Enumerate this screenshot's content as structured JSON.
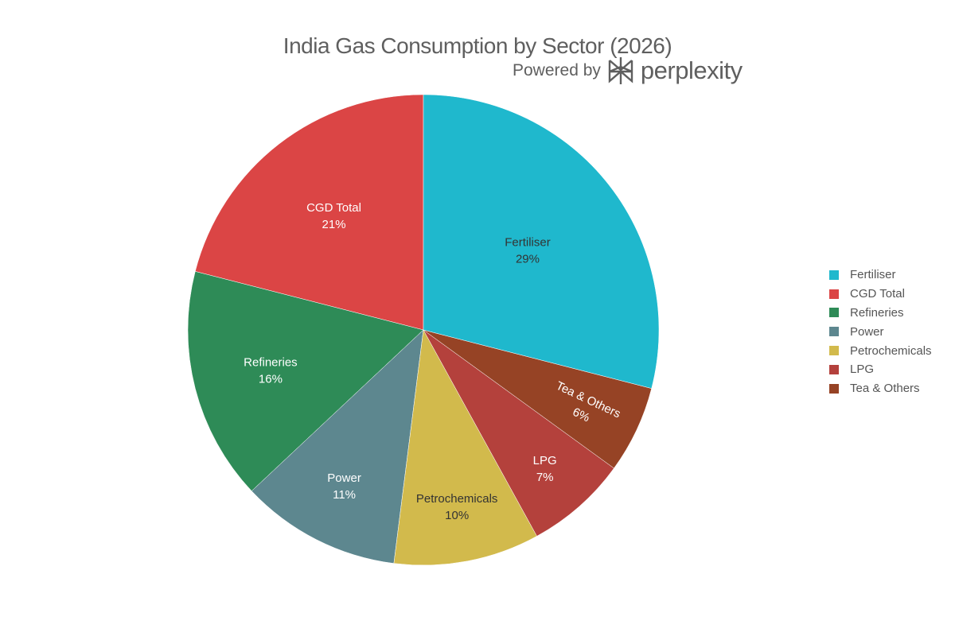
{
  "chart_data": {
    "type": "pie",
    "title": "India Gas Consumption by Sector (2026)",
    "watermark": "Powered by perplexity",
    "categories": [
      "Fertiliser",
      "CGD Total",
      "Refineries",
      "Power",
      "Petrochemicals",
      "LPG",
      "Tea & Others"
    ],
    "values": [
      29,
      21,
      16,
      11,
      10,
      7,
      6
    ],
    "unit": "%",
    "colors": [
      "#1FB8CD",
      "#DB4545",
      "#2E8B57",
      "#5D878F",
      "#D2BA4C",
      "#B4413C",
      "#964325"
    ],
    "label_colors": [
      "#333333",
      "#ffffff",
      "#ffffff",
      "#ffffff",
      "#333333",
      "#ffffff",
      "#ffffff"
    ],
    "direction": "counterclockwise",
    "legend_position": "right"
  },
  "legend": [
    "Fertiliser",
    "CGD Total",
    "Refineries",
    "Power",
    "Petrochemicals",
    "LPG",
    "Tea & Others"
  ]
}
